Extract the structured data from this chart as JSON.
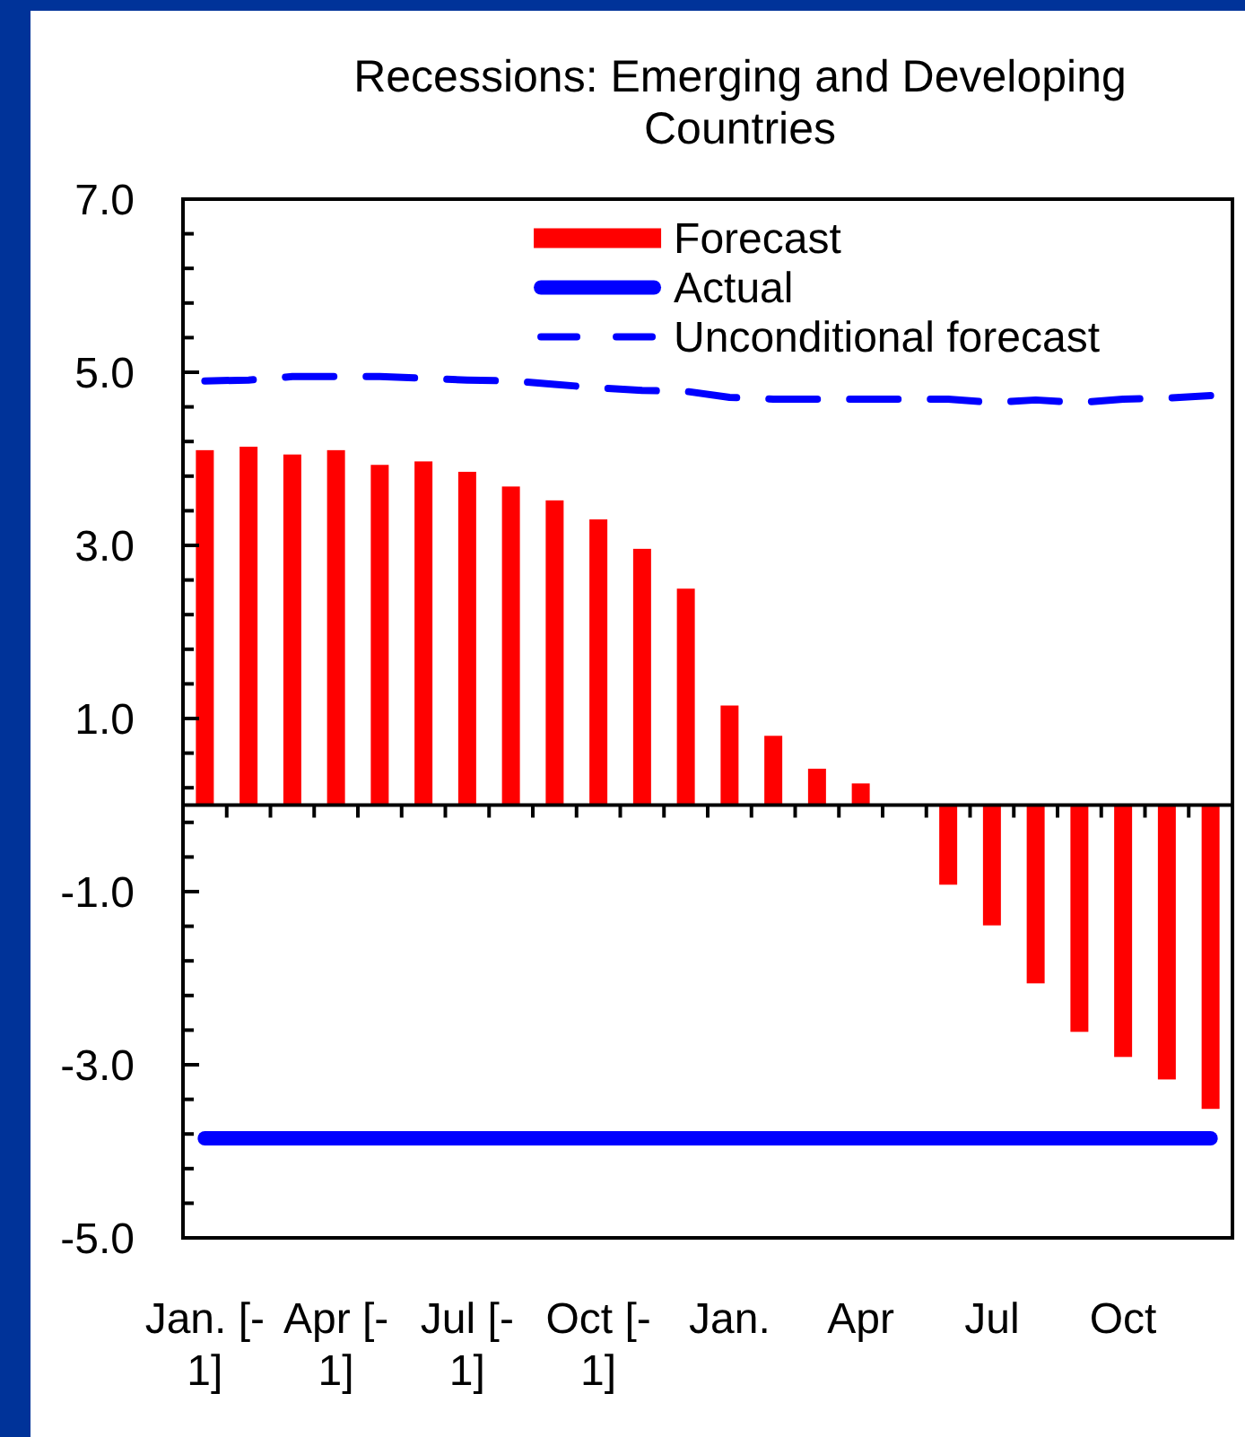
{
  "chart_data": {
    "type": "bar",
    "title": "Recessions: Emerging and Developing Countries",
    "categories": [
      "Jan. [-1]",
      null,
      null,
      "Apr [-1]",
      null,
      null,
      "Jul [-1]",
      null,
      null,
      "Oct [-1]",
      null,
      null,
      "Jan.",
      null,
      null,
      "Apr",
      null,
      null,
      "Jul",
      null,
      null,
      "Oct",
      null,
      null
    ],
    "series": [
      {
        "name": "Forecast",
        "color": "#ff0000",
        "values": [
          4.1,
          4.14,
          4.05,
          4.1,
          3.93,
          3.97,
          3.85,
          3.68,
          3.52,
          3.3,
          2.96,
          2.5,
          1.15,
          0.8,
          0.42,
          0.25,
          0,
          -0.92,
          -1.39,
          -2.06,
          -2.62,
          -2.91,
          -3.17,
          -3.51
        ]
      },
      {
        "name": "Actual",
        "type": "line",
        "color": "#0000ff",
        "line_style": "solid",
        "values": [
          -3.85,
          -3.85,
          -3.85,
          -3.85,
          -3.85,
          -3.85,
          -3.85,
          -3.85,
          -3.85,
          -3.85,
          -3.85,
          -3.85,
          -3.85,
          -3.85,
          -3.85,
          -3.85,
          -3.85,
          -3.85,
          -3.85,
          -3.85,
          -3.85,
          -3.85,
          -3.85,
          -3.85
        ]
      },
      {
        "name": "Unconditional forecast",
        "type": "line",
        "color": "#0000ff",
        "line_style": "dashed",
        "values": [
          4.9,
          4.91,
          4.95,
          4.95,
          4.95,
          4.93,
          4.91,
          4.9,
          4.86,
          4.82,
          4.79,
          4.78,
          4.71,
          4.69,
          4.69,
          4.69,
          4.69,
          4.69,
          4.65,
          4.68,
          4.65,
          4.69,
          4.7,
          4.73
        ]
      }
    ],
    "ylim": [
      -5,
      7
    ],
    "yticks": [
      {
        "value": -5,
        "label": "-5.0"
      },
      {
        "value": -4.6,
        "label": null
      },
      {
        "value": -4.2,
        "label": null
      },
      {
        "value": -3.8,
        "label": null
      },
      {
        "value": -3.4,
        "label": null
      },
      {
        "value": -3,
        "label": "-3.0"
      },
      {
        "value": -2.6,
        "label": null
      },
      {
        "value": -2.2,
        "label": null
      },
      {
        "value": -1.8,
        "label": null
      },
      {
        "value": -1.4,
        "label": null
      },
      {
        "value": -1,
        "label": "-1.0"
      },
      {
        "value": -0.6,
        "label": null
      },
      {
        "value": -0.2,
        "label": null
      },
      {
        "value": 0.2,
        "label": null
      },
      {
        "value": 0.6,
        "label": null
      },
      {
        "value": 1,
        "label": "1.0"
      },
      {
        "value": 1.4,
        "label": null
      },
      {
        "value": 1.8,
        "label": null
      },
      {
        "value": 2.2,
        "label": null
      },
      {
        "value": 2.6,
        "label": null
      },
      {
        "value": 3,
        "label": "3.0"
      },
      {
        "value": 3.4,
        "label": null
      },
      {
        "value": 3.8,
        "label": null
      },
      {
        "value": 4.2,
        "label": null
      },
      {
        "value": 4.6,
        "label": null
      },
      {
        "value": 5,
        "label": "5.0"
      },
      {
        "value": 5.4,
        "label": null
      },
      {
        "value": 5.8,
        "label": null
      },
      {
        "value": 6.2,
        "label": null
      },
      {
        "value": 6.6,
        "label": null
      },
      {
        "value": 7,
        "label": "7.0"
      }
    ],
    "legend": "top right"
  }
}
